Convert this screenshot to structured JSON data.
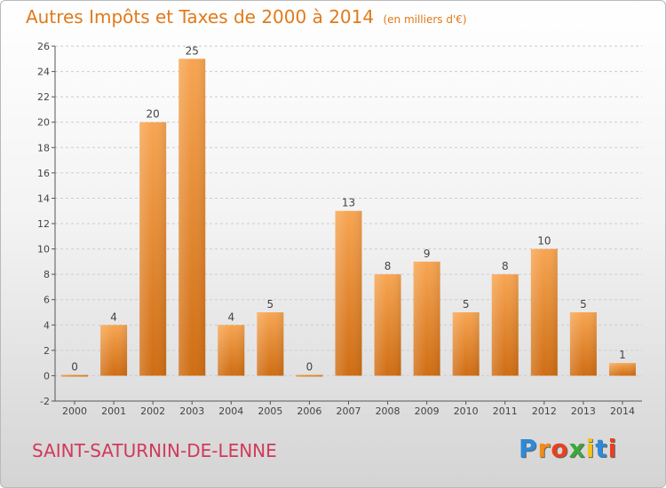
{
  "title": {
    "main": "Autres Impôts et Taxes de 2000 à 2014",
    "unit": "(en milliers d'€)"
  },
  "commune": "SAINT-SATURNIN-DE-LENNE",
  "logo": {
    "text": "Proxiti",
    "letters": [
      {
        "char": "P",
        "color": "#2b8ad9"
      },
      {
        "char": "r",
        "color": "#f28c1a"
      },
      {
        "char": "o",
        "color": "#e8411f"
      },
      {
        "char": "x",
        "color": "#3aa83a"
      },
      {
        "char": "i",
        "color": "#f2c31a"
      },
      {
        "char": "t",
        "color": "#2b8ad9"
      },
      {
        "char": "i",
        "color": "#e8411f"
      }
    ]
  },
  "colors": {
    "bar_top": "#f7a552",
    "bar_bottom": "#cf6d13",
    "title": "#e07a1c",
    "commune": "#d13a5a",
    "grid": "#cccccc"
  },
  "chart_data": {
    "type": "bar",
    "title": "Autres Impôts et Taxes de 2000 à 2014",
    "subtitle": "(en milliers d'€)",
    "categories": [
      "2000",
      "2001",
      "2002",
      "2003",
      "2004",
      "2005",
      "2006",
      "2007",
      "2008",
      "2009",
      "2010",
      "2011",
      "2012",
      "2013",
      "2014"
    ],
    "values": [
      0,
      4,
      20,
      25,
      4,
      5,
      0,
      13,
      8,
      9,
      5,
      8,
      10,
      5,
      1
    ],
    "ylim": [
      -2,
      26
    ],
    "yticks": [
      -2,
      0,
      2,
      4,
      6,
      8,
      10,
      12,
      14,
      16,
      18,
      20,
      22,
      24,
      26
    ],
    "grid": "horizontal dashed",
    "legend": "none"
  }
}
